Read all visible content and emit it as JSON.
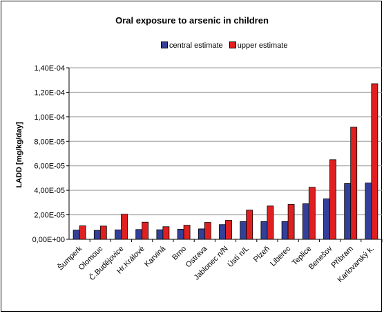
{
  "chart_data": {
    "type": "bar",
    "title": "Oral exposure to arsenic in children",
    "ylabel": "LADD [mg/kg/day]",
    "xlabel": "",
    "ylim": [
      0,
      0.00014
    ],
    "y_ticks": [
      "0,00E+00",
      "2,00E-05",
      "4,00E-05",
      "6,00E-05",
      "8,00E-05",
      "1,00E-04",
      "1,20E-04",
      "1,40E-04"
    ],
    "legend_position": "top",
    "grid": true,
    "categories": [
      "Šumperk",
      "Olomouc",
      "Č.Budějovice",
      "Hr.Králové",
      "Karviná",
      "Brno",
      "Ostrava",
      "Jablonec n/N",
      "Ústí n/L",
      "Plzeň",
      "Liberec",
      "Teplice",
      "Benešov",
      "Příbram",
      "Karlovarský k."
    ],
    "series": [
      {
        "name": "central estimate",
        "color": "#33409a",
        "values": [
          7.5e-06,
          7.3e-06,
          7.7e-06,
          8e-06,
          7.8e-06,
          8.2e-06,
          8.5e-06,
          1.2e-05,
          1.45e-05,
          1.45e-05,
          1.45e-05,
          2.9e-05,
          3.3e-05,
          4.55e-05,
          4.6e-05
        ]
      },
      {
        "name": "upper estimate",
        "color": "#e02020",
        "values": [
          1.1e-05,
          1.08e-05,
          2.05e-05,
          1.4e-05,
          1.03e-05,
          1.15e-05,
          1.38e-05,
          1.55e-05,
          2.38e-05,
          2.72e-05,
          2.85e-05,
          4.25e-05,
          6.5e-05,
          9.15e-05,
          0.000127
        ]
      }
    ]
  }
}
